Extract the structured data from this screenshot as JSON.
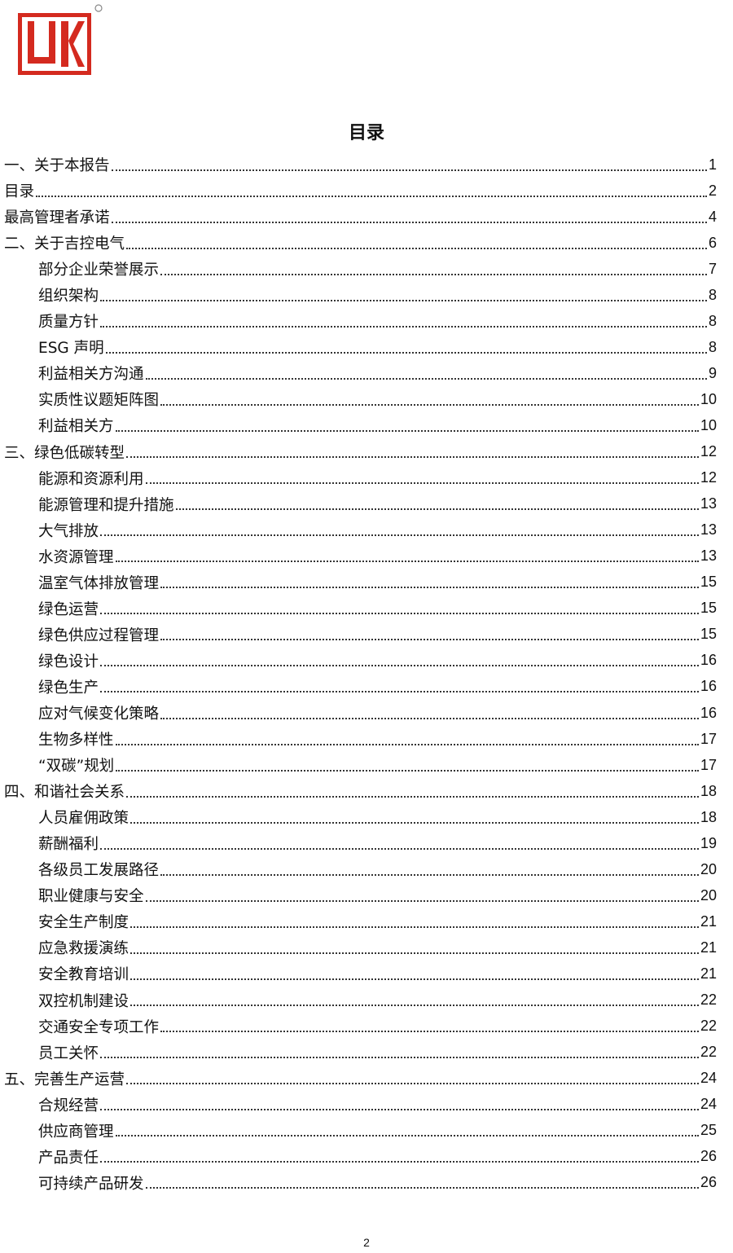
{
  "logo": {
    "text": "JK",
    "color": "#d42a1f"
  },
  "title": "目录",
  "entries": [
    {
      "label": "一、关于本报告",
      "page": "1",
      "level": 1
    },
    {
      "label": "目录",
      "page": "2",
      "level": 1
    },
    {
      "label": "最高管理者承诺",
      "page": "4",
      "level": 1
    },
    {
      "label": "二、关于吉控电气",
      "page": "6",
      "level": 1
    },
    {
      "label": "部分企业荣誉展示",
      "page": "7",
      "level": 2
    },
    {
      "label": "组织架构",
      "page": "8",
      "level": 2
    },
    {
      "label": "质量方针",
      "page": "8",
      "level": 2
    },
    {
      "label": "ESG 声明",
      "page": "8",
      "level": 2
    },
    {
      "label": "利益相关方沟通",
      "page": "9",
      "level": 2
    },
    {
      "label": "实质性议题矩阵图",
      "page": "10",
      "level": 2
    },
    {
      "label": "利益相关方",
      "page": "10",
      "level": 2
    },
    {
      "label": "三、绿色低碳转型",
      "page": "12",
      "level": 1
    },
    {
      "label": "能源和资源利用",
      "page": "12",
      "level": 2
    },
    {
      "label": "能源管理和提升措施",
      "page": "13",
      "level": 2
    },
    {
      "label": "大气排放",
      "page": "13",
      "level": 2
    },
    {
      "label": "水资源管理",
      "page": "13",
      "level": 2
    },
    {
      "label": "温室气体排放管理",
      "page": "15",
      "level": 2
    },
    {
      "label": "绿色运营",
      "page": "15",
      "level": 2
    },
    {
      "label": "绿色供应过程管理",
      "page": "15",
      "level": 2
    },
    {
      "label": "绿色设计",
      "page": "16",
      "level": 2
    },
    {
      "label": "绿色生产",
      "page": "16",
      "level": 2
    },
    {
      "label": "应对气候变化策略",
      "page": "16",
      "level": 2
    },
    {
      "label": "生物多样性",
      "page": "17",
      "level": 2
    },
    {
      "label": "“双碳”规划",
      "page": "17",
      "level": 2
    },
    {
      "label": "四、和谐社会关系",
      "page": "18",
      "level": 1
    },
    {
      "label": "人员雇佣政策",
      "page": "18",
      "level": 2
    },
    {
      "label": "薪酬福利",
      "page": "19",
      "level": 2
    },
    {
      "label": "各级员工发展路径",
      "page": "20",
      "level": 2
    },
    {
      "label": "职业健康与安全",
      "page": "20",
      "level": 2
    },
    {
      "label": "安全生产制度",
      "page": "21",
      "level": 2
    },
    {
      "label": "应急救援演练",
      "page": "21",
      "level": 2
    },
    {
      "label": "安全教育培训",
      "page": "21",
      "level": 2
    },
    {
      "label": "双控机制建设",
      "page": "22",
      "level": 2
    },
    {
      "label": "交通安全专项工作",
      "page": "22",
      "level": 2
    },
    {
      "label": "员工关怀",
      "page": "22",
      "level": 2
    },
    {
      "label": "五、完善生产运营",
      "page": "24",
      "level": 1
    },
    {
      "label": "合规经营",
      "page": "24",
      "level": 2
    },
    {
      "label": "供应商管理",
      "page": "25",
      "level": 2
    },
    {
      "label": "产品责任",
      "page": "26",
      "level": 2
    },
    {
      "label": "可持续产品研发",
      "page": "26",
      "level": 2
    }
  ],
  "page_number": "2"
}
